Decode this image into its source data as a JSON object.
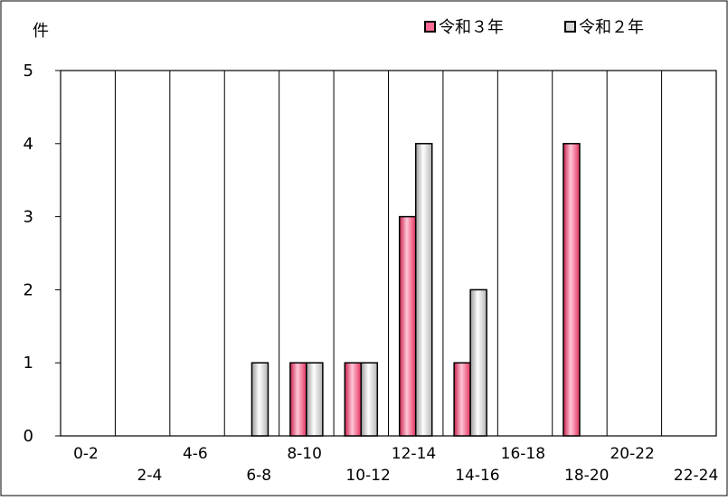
{
  "chart_data": {
    "type": "bar",
    "title": "",
    "xlabel": "",
    "ylabel": "件",
    "ylim": [
      0,
      5
    ],
    "yticks": [
      0,
      1,
      2,
      3,
      4,
      5
    ],
    "grid": "vertical",
    "legend_position": "top-right",
    "categories": [
      "0-2",
      "2-4",
      "4-6",
      "6-8",
      "8-10",
      "10-12",
      "12-14",
      "14-16",
      "16-18",
      "18-20",
      "20-22",
      "22-24"
    ],
    "series": [
      {
        "name": "令和３年",
        "color": "#ff6a95",
        "values": [
          0,
          0,
          0,
          0,
          1,
          1,
          3,
          1,
          0,
          4,
          0,
          0
        ]
      },
      {
        "name": "令和２年",
        "color": "#d8d8d8",
        "values": [
          0,
          0,
          0,
          1,
          1,
          1,
          4,
          2,
          0,
          0,
          0,
          0
        ]
      }
    ]
  }
}
